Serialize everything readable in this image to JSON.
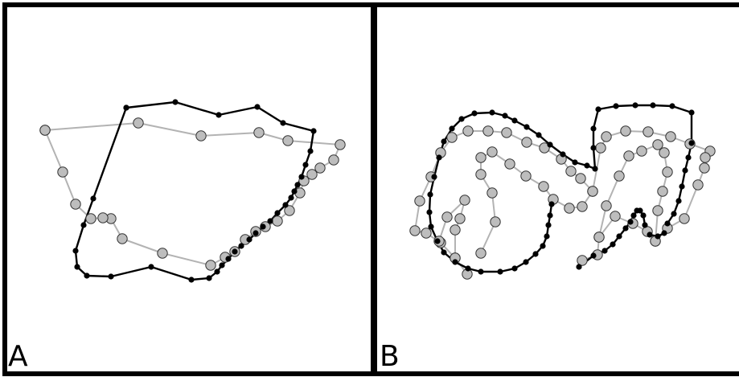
{
  "panels": [
    {
      "label": "A"
    },
    {
      "label": "B"
    }
  ],
  "colors": {
    "gray_contour": "#b3b3b3",
    "gray_point_fill": "#bdbdbd",
    "black_contour": "#000000"
  }
}
